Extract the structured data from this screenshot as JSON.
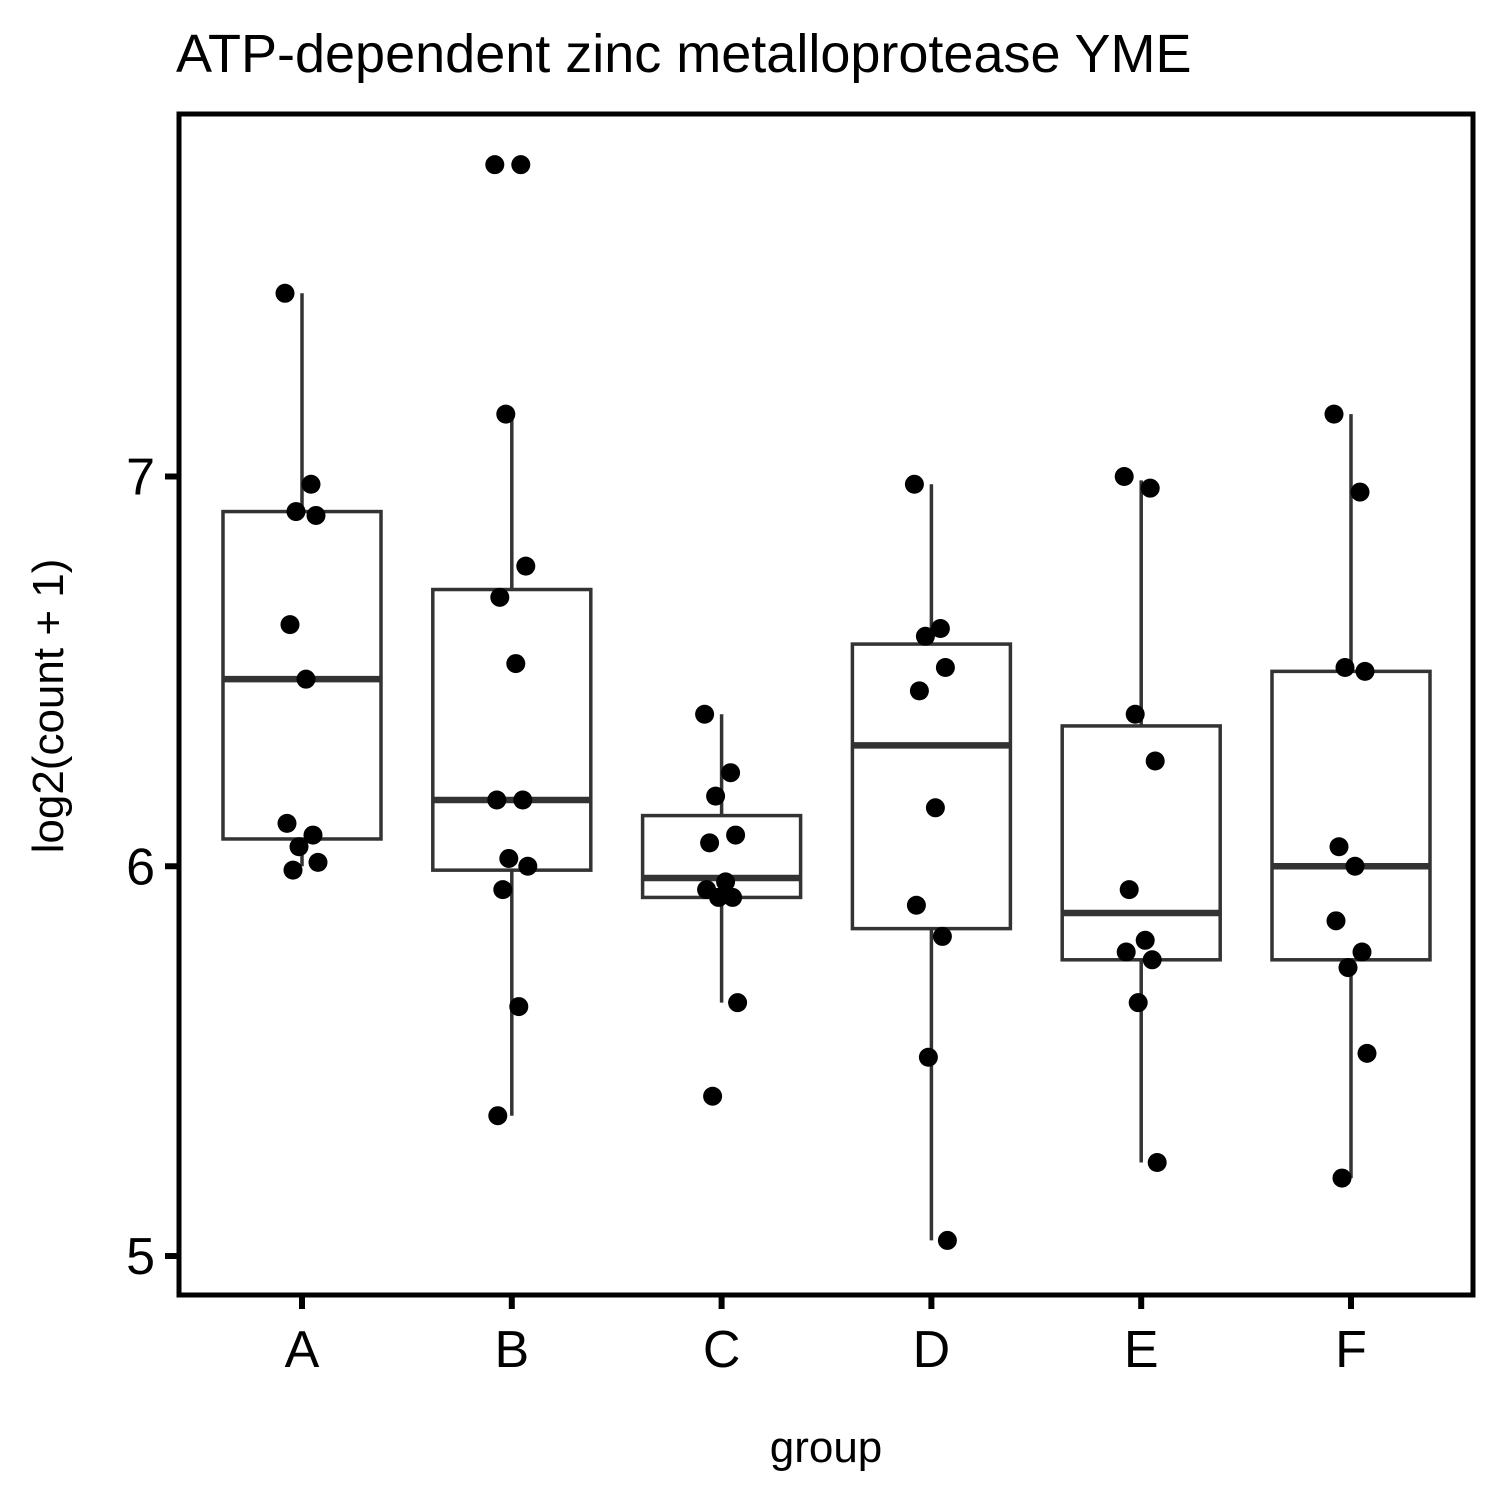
{
  "chart_data": {
    "type": "box",
    "title": "ATP-dependent zinc metalloprotease YME",
    "xlabel": "group",
    "ylabel": "log2(count + 1)",
    "categories": [
      "A",
      "B",
      "C",
      "D",
      "E",
      "F"
    ],
    "ylim": [
      4.9,
      7.93
    ],
    "yticks": [
      5,
      6,
      7
    ],
    "grid": false,
    "legend": "none",
    "colors": {
      "box_stroke": "#333333",
      "point": "#000000",
      "frame": "#000000",
      "background": "#ffffff"
    },
    "boxes": [
      {
        "group": "A",
        "whisker_low": 6.0,
        "q1": 6.07,
        "median": 6.48,
        "q3": 6.91,
        "whisker_high": 7.47
      },
      {
        "group": "B",
        "whisker_low": 5.36,
        "q1": 5.99,
        "median": 6.17,
        "q3": 6.71,
        "whisker_high": 7.16
      },
      {
        "group": "C",
        "whisker_low": 5.65,
        "q1": 5.92,
        "median": 5.97,
        "q3": 6.13,
        "whisker_high": 6.39
      },
      {
        "group": "D",
        "whisker_low": 5.04,
        "q1": 5.84,
        "median": 6.31,
        "q3": 6.57,
        "whisker_high": 6.98
      },
      {
        "group": "E",
        "whisker_low": 5.24,
        "q1": 5.76,
        "median": 5.88,
        "q3": 6.36,
        "whisker_high": 6.99
      },
      {
        "group": "F",
        "whisker_low": 5.2,
        "q1": 5.76,
        "median": 6.0,
        "q3": 6.5,
        "whisker_high": 7.16
      }
    ],
    "points": [
      {
        "group": "A",
        "values": [
          7.47,
          6.98,
          6.91,
          6.9,
          6.62,
          6.48,
          6.11,
          6.08,
          6.05,
          6.01,
          5.99
        ]
      },
      {
        "group": "B",
        "values": [
          7.8,
          7.8,
          7.16,
          6.77,
          6.69,
          6.52,
          6.17,
          6.17,
          6.02,
          6.0,
          5.94,
          5.64,
          5.36
        ]
      },
      {
        "group": "C",
        "values": [
          6.39,
          6.24,
          6.18,
          6.08,
          6.06,
          5.96,
          5.94,
          5.92,
          5.92,
          5.65,
          5.41
        ]
      },
      {
        "group": "D",
        "values": [
          6.98,
          6.61,
          6.59,
          6.51,
          6.45,
          6.15,
          5.9,
          5.82,
          5.51,
          5.04
        ]
      },
      {
        "group": "E",
        "values": [
          7.0,
          6.97,
          6.39,
          6.27,
          5.94,
          5.81,
          5.78,
          5.76,
          5.65,
          5.24
        ]
      },
      {
        "group": "F",
        "values": [
          7.16,
          6.96,
          6.51,
          6.5,
          6.05,
          6.0,
          5.86,
          5.78,
          5.74,
          5.52,
          5.2
        ]
      }
    ]
  }
}
